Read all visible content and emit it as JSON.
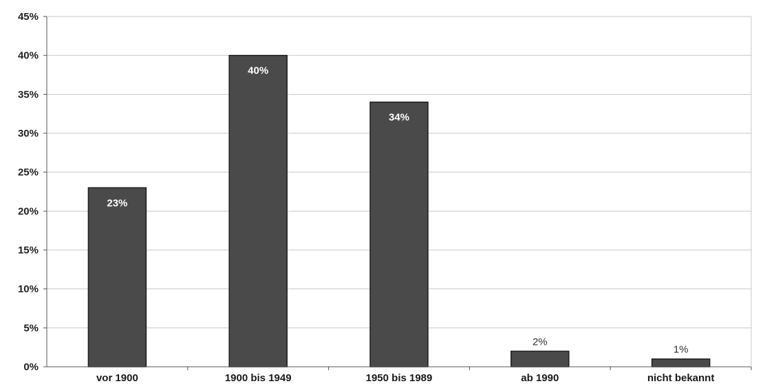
{
  "chart_data": {
    "type": "bar",
    "categories": [
      "vor 1900",
      "1900 bis 1949",
      "1950 bis 1989",
      "ab 1990",
      "nicht bekannt"
    ],
    "values": [
      23,
      40,
      34,
      2,
      1
    ],
    "data_labels": [
      "23%",
      "40%",
      "34%",
      "2%",
      "1%"
    ],
    "ylim": [
      0,
      45
    ],
    "yticks": [
      0,
      5,
      10,
      15,
      20,
      25,
      30,
      35,
      40,
      45
    ],
    "ytick_labels": [
      "0%",
      "5%",
      "10%",
      "15%",
      "20%",
      "25%",
      "30%",
      "35%",
      "40%",
      "45%"
    ],
    "grid": true,
    "legend": "none",
    "colors": {
      "bar_fill": "#4a4a4a",
      "bar_edge": "#1e1e1e",
      "grid": "#c8c8c8",
      "axis": "#555555"
    }
  }
}
